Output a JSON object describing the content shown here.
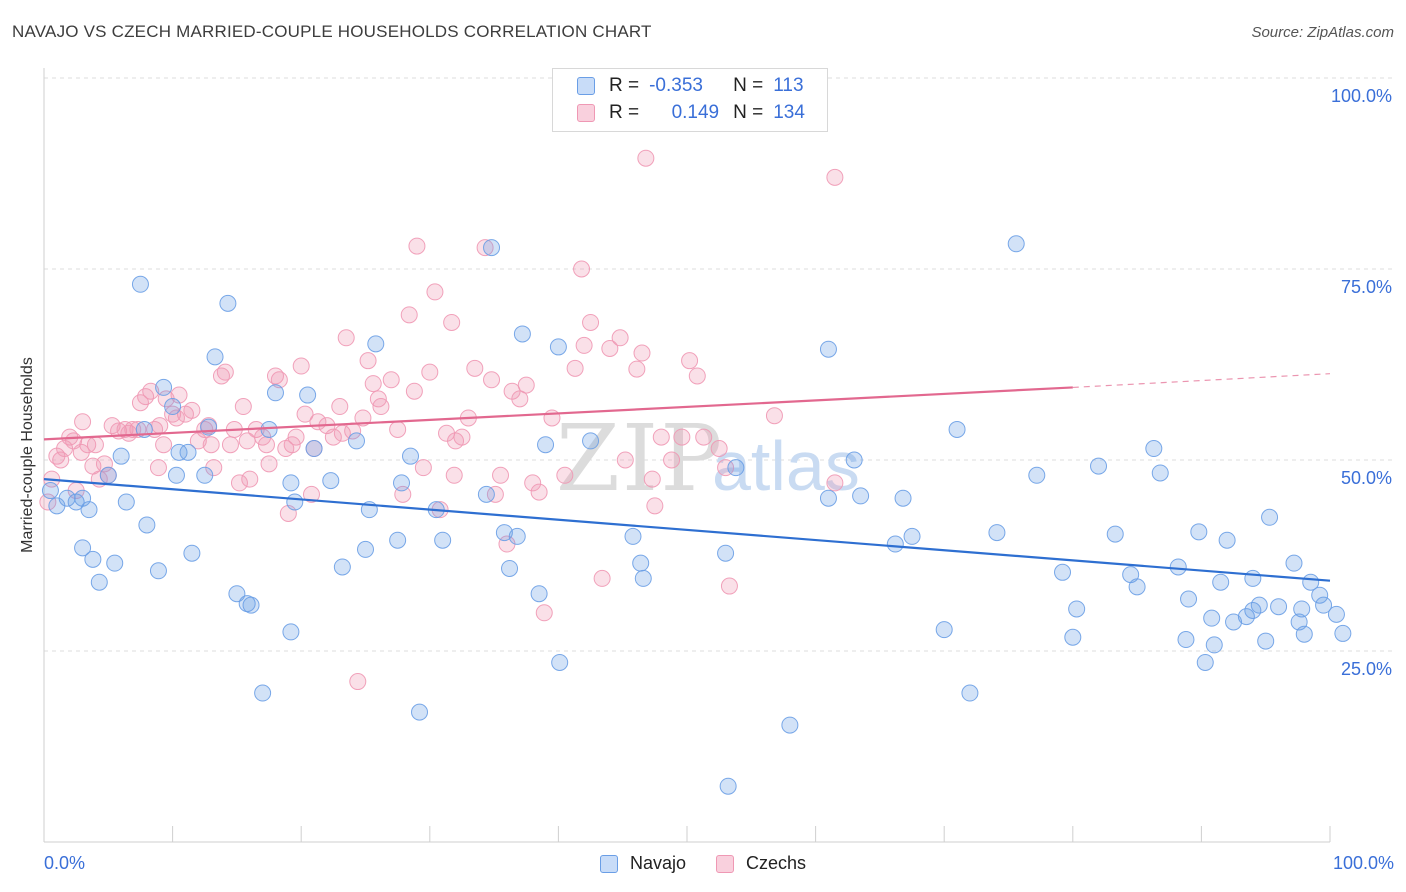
{
  "title": "NAVAJO VS CZECH MARRIED-COUPLE HOUSEHOLDS CORRELATION CHART",
  "source": "Source: ZipAtlas.com",
  "watermark": "ZIPatlas",
  "legend": {
    "r_label": "R =",
    "n_label": "N =",
    "navajo": {
      "r": "-0.353",
      "n": "113"
    },
    "czechs": {
      "r": "0.149",
      "n": "134"
    }
  },
  "chart_data": {
    "type": "scatter",
    "title": "NAVAJO VS CZECH MARRIED-COUPLE HOUSEHOLDS CORRELATION CHART",
    "xlabel": "",
    "ylabel": "Married-couple Households",
    "xlim": [
      0,
      100
    ],
    "ylim": [
      0,
      100
    ],
    "x_tick_labels": [
      "0.0%",
      "100.0%"
    ],
    "y_tick_labels": [
      "25.0%",
      "50.0%",
      "75.0%",
      "100.0%"
    ],
    "y_ticks": [
      25,
      50,
      75,
      100
    ],
    "colors": {
      "navajo": "#6a9ee6",
      "czechs": "#ef98b4",
      "navajo_line": "#2e6fd1",
      "czechs_line": "#e2688f"
    },
    "series": [
      {
        "name": "Navajo",
        "trend": {
          "x": [
            0,
            100
          ],
          "y": [
            47.5,
            34.2
          ]
        },
        "points": [
          [
            0.5,
            46
          ],
          [
            1,
            44
          ],
          [
            1.8,
            45
          ],
          [
            2.5,
            44.5
          ],
          [
            3,
            45
          ],
          [
            3.5,
            43.5
          ],
          [
            3,
            38.5
          ],
          [
            3.8,
            37
          ],
          [
            4.3,
            34
          ],
          [
            5,
            48
          ],
          [
            5.5,
            36.5
          ],
          [
            6,
            50.5
          ],
          [
            6.4,
            44.5
          ],
          [
            7.5,
            73
          ],
          [
            7.8,
            54
          ],
          [
            8,
            41.5
          ],
          [
            8.9,
            35.5
          ],
          [
            9.3,
            59.5
          ],
          [
            10,
            57
          ],
          [
            10.3,
            48
          ],
          [
            10.5,
            51
          ],
          [
            11.2,
            51
          ],
          [
            11.5,
            37.8
          ],
          [
            12.5,
            48
          ],
          [
            12.8,
            54.3
          ],
          [
            13.3,
            63.5
          ],
          [
            14.3,
            70.5
          ],
          [
            15,
            32.5
          ],
          [
            15.8,
            31.2
          ],
          [
            16.1,
            31
          ],
          [
            17,
            19.5
          ],
          [
            17.5,
            54
          ],
          [
            18,
            58.8
          ],
          [
            19.2,
            47
          ],
          [
            19.2,
            27.5
          ],
          [
            19.5,
            44.5
          ],
          [
            20.5,
            58.5
          ],
          [
            21,
            51.5
          ],
          [
            22.3,
            47.3
          ],
          [
            23.2,
            36
          ],
          [
            24.3,
            52.5
          ],
          [
            25,
            38.3
          ],
          [
            25.3,
            43.5
          ],
          [
            25.8,
            65.2
          ],
          [
            27.5,
            39.5
          ],
          [
            27.8,
            47
          ],
          [
            28.5,
            50.5
          ],
          [
            29.2,
            17
          ],
          [
            30.5,
            43.5
          ],
          [
            31,
            39.5
          ],
          [
            34.4,
            45.5
          ],
          [
            34.8,
            77.8
          ],
          [
            35.8,
            40.5
          ],
          [
            36.2,
            35.8
          ],
          [
            36.8,
            40
          ],
          [
            37.2,
            66.5
          ],
          [
            38.5,
            32.5
          ],
          [
            39,
            52
          ],
          [
            40,
            64.8
          ],
          [
            40.1,
            23.5
          ],
          [
            42.5,
            52.5
          ],
          [
            45.8,
            40
          ],
          [
            46.4,
            36.5
          ],
          [
            46.6,
            34.5
          ],
          [
            53.2,
            7.3
          ],
          [
            53,
            37.8
          ],
          [
            53.8,
            49
          ],
          [
            58,
            15.3
          ],
          [
            61,
            64.5
          ],
          [
            61,
            45
          ],
          [
            63,
            50
          ],
          [
            63.5,
            45.3
          ],
          [
            66.2,
            39
          ],
          [
            66.8,
            45
          ],
          [
            67.5,
            40
          ],
          [
            70,
            27.8
          ],
          [
            71,
            54
          ],
          [
            72,
            19.5
          ],
          [
            74.1,
            40.5
          ],
          [
            75.6,
            78.3
          ],
          [
            77.2,
            48
          ],
          [
            79.2,
            35.3
          ],
          [
            80,
            26.8
          ],
          [
            80.3,
            30.5
          ],
          [
            82,
            49.2
          ],
          [
            83.3,
            40.3
          ],
          [
            84.5,
            35
          ],
          [
            85,
            33.4
          ],
          [
            86.3,
            51.5
          ],
          [
            86.8,
            48.3
          ],
          [
            88.2,
            36
          ],
          [
            88.8,
            26.5
          ],
          [
            89,
            31.8
          ],
          [
            89.8,
            40.6
          ],
          [
            90.3,
            23.5
          ],
          [
            90.8,
            29.3
          ],
          [
            91,
            25.8
          ],
          [
            91.5,
            34
          ],
          [
            92,
            39.5
          ],
          [
            92.5,
            28.8
          ],
          [
            93.5,
            29.5
          ],
          [
            94,
            34.5
          ],
          [
            94,
            30.3
          ],
          [
            94.5,
            31
          ],
          [
            95,
            26.3
          ],
          [
            95.3,
            42.5
          ],
          [
            96,
            30.8
          ],
          [
            97.2,
            36.5
          ],
          [
            97.6,
            28.8
          ],
          [
            97.8,
            30.5
          ],
          [
            98,
            27.2
          ],
          [
            98.5,
            34
          ],
          [
            99.2,
            32.3
          ],
          [
            99.5,
            31
          ],
          [
            100.5,
            29.8
          ],
          [
            101,
            27.3
          ]
        ]
      },
      {
        "name": "Czechs",
        "trend": {
          "x": [
            0,
            80
          ],
          "y": [
            52.7,
            59.5
          ]
        },
        "trend_dashed": {
          "x": [
            80,
            100
          ],
          "y": [
            59.5,
            61.3
          ]
        },
        "points": [
          [
            0.3,
            44.5
          ],
          [
            0.6,
            47.5
          ],
          [
            1,
            50.5
          ],
          [
            1.3,
            50
          ],
          [
            1.6,
            51.5
          ],
          [
            2,
            53
          ],
          [
            2.3,
            52.5
          ],
          [
            2.5,
            46
          ],
          [
            2.9,
            51
          ],
          [
            3,
            55
          ],
          [
            3.4,
            52
          ],
          [
            3.8,
            49.2
          ],
          [
            4,
            52
          ],
          [
            4.3,
            47.5
          ],
          [
            4.7,
            49.5
          ],
          [
            5,
            48
          ],
          [
            5.3,
            54.5
          ],
          [
            5.8,
            53.8
          ],
          [
            6.3,
            54
          ],
          [
            6.6,
            53.5
          ],
          [
            6.9,
            54
          ],
          [
            7.3,
            54
          ],
          [
            7.5,
            57.5
          ],
          [
            7.9,
            58.3
          ],
          [
            8.3,
            59
          ],
          [
            8.6,
            54
          ],
          [
            8.9,
            49
          ],
          [
            9,
            54.5
          ],
          [
            9.3,
            52
          ],
          [
            9.5,
            58
          ],
          [
            10,
            56
          ],
          [
            10.3,
            55.5
          ],
          [
            10.5,
            58.5
          ],
          [
            11,
            56
          ],
          [
            11.5,
            56.5
          ],
          [
            12,
            52.5
          ],
          [
            12.5,
            54
          ],
          [
            12.8,
            54.5
          ],
          [
            13,
            52
          ],
          [
            13.2,
            49
          ],
          [
            13.8,
            61
          ],
          [
            14.1,
            61.5
          ],
          [
            14.5,
            52
          ],
          [
            14.8,
            54
          ],
          [
            15.2,
            47
          ],
          [
            15.5,
            57
          ],
          [
            15.8,
            52.5
          ],
          [
            16,
            47.5
          ],
          [
            16.5,
            54
          ],
          [
            17,
            53
          ],
          [
            17.3,
            52
          ],
          [
            17.5,
            49.5
          ],
          [
            18,
            61
          ],
          [
            18.3,
            60.5
          ],
          [
            18.8,
            51.5
          ],
          [
            19,
            43
          ],
          [
            19.3,
            52
          ],
          [
            19.6,
            53
          ],
          [
            20,
            62.3
          ],
          [
            20.3,
            56
          ],
          [
            20.8,
            45.5
          ],
          [
            21,
            51.5
          ],
          [
            21.3,
            55
          ],
          [
            22,
            54.5
          ],
          [
            22.5,
            53
          ],
          [
            23,
            57
          ],
          [
            23.2,
            53.5
          ],
          [
            23.5,
            66
          ],
          [
            24,
            53.8
          ],
          [
            24.4,
            21
          ],
          [
            24.8,
            55.5
          ],
          [
            25.2,
            63
          ],
          [
            25.6,
            60
          ],
          [
            26,
            58
          ],
          [
            26.2,
            57
          ],
          [
            27,
            60.5
          ],
          [
            27.5,
            54
          ],
          [
            27.9,
            45.5
          ],
          [
            28.4,
            69
          ],
          [
            28.8,
            59
          ],
          [
            29,
            78
          ],
          [
            29.5,
            49
          ],
          [
            30,
            61.5
          ],
          [
            30.4,
            72
          ],
          [
            30.8,
            43.5
          ],
          [
            31.3,
            53.5
          ],
          [
            31.7,
            68
          ],
          [
            31.9,
            48
          ],
          [
            32,
            52.5
          ],
          [
            32.5,
            53
          ],
          [
            33,
            55.5
          ],
          [
            33.5,
            62
          ],
          [
            34.3,
            77.8
          ],
          [
            34.8,
            60.5
          ],
          [
            35.1,
            45.5
          ],
          [
            35.5,
            48
          ],
          [
            36,
            39
          ],
          [
            36.4,
            59
          ],
          [
            37,
            58
          ],
          [
            37.5,
            59.8
          ],
          [
            38,
            47
          ],
          [
            38.5,
            45.8
          ],
          [
            38.9,
            30
          ],
          [
            39.5,
            55.5
          ],
          [
            40.5,
            48
          ],
          [
            41.3,
            62
          ],
          [
            41.8,
            75
          ],
          [
            42,
            65
          ],
          [
            42.5,
            68
          ],
          [
            43.4,
            34.5
          ],
          [
            44,
            64.6
          ],
          [
            44.8,
            66
          ],
          [
            45.2,
            50
          ],
          [
            46.1,
            61.9
          ],
          [
            46.5,
            64
          ],
          [
            46.8,
            89.5
          ],
          [
            47.3,
            47.5
          ],
          [
            47.5,
            44
          ],
          [
            48,
            53
          ],
          [
            48.8,
            50
          ],
          [
            49.6,
            53
          ],
          [
            50.2,
            63
          ],
          [
            50.8,
            61
          ],
          [
            51.3,
            53
          ],
          [
            52.5,
            51.5
          ],
          [
            53,
            49
          ],
          [
            53.3,
            33.5
          ],
          [
            56.8,
            55.8
          ],
          [
            61.5,
            87
          ],
          [
            61.5,
            47
          ]
        ]
      }
    ]
  }
}
